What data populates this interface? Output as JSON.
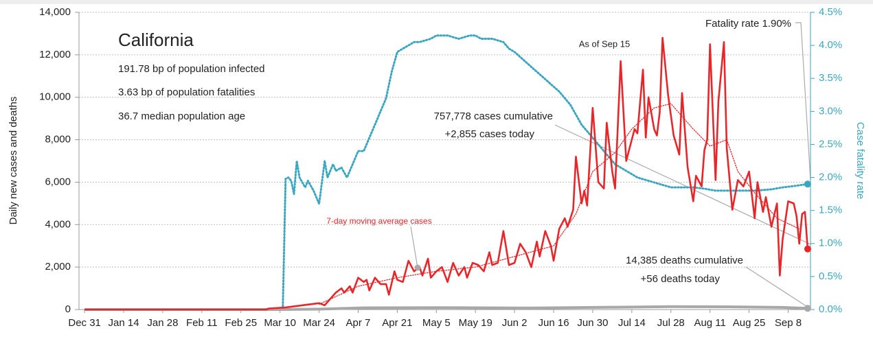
{
  "chart_data": {
    "type": "line",
    "title": "California",
    "subtitle_lines": [
      "191.78 bp of population infected",
      "3.63 bp of population fatalities",
      "36.7 median population age"
    ],
    "ylabel": "Daily new cases and deaths",
    "y2label": "Case fatality rate",
    "annotations": {
      "as_of": "As of Sep 15",
      "fatality": "Fatality rate 1.90%",
      "cases_cum": "757,778 cases cumulative",
      "cases_today": "+2,855 cases today",
      "deaths_cum": "14,385 deaths cumulative",
      "deaths_today": "+56 deaths today"
    },
    "xlim": [
      -2,
      260
    ],
    "xticks": [
      {
        "value": 0,
        "label": "Dec 31"
      },
      {
        "value": 14,
        "label": "Jan 14"
      },
      {
        "value": 28,
        "label": "Jan 28"
      },
      {
        "value": 42,
        "label": "Feb 11"
      },
      {
        "value": 56,
        "label": "Feb 25"
      },
      {
        "value": 70,
        "label": "Mar 10"
      },
      {
        "value": 84,
        "label": "Mar 24"
      },
      {
        "value": 98,
        "label": "Apr 7"
      },
      {
        "value": 112,
        "label": "Apr 21"
      },
      {
        "value": 126,
        "label": "May 5"
      },
      {
        "value": 140,
        "label": "May 19"
      },
      {
        "value": 154,
        "label": "Jun 2"
      },
      {
        "value": 168,
        "label": "Jun 16"
      },
      {
        "value": 182,
        "label": "Jun 30"
      },
      {
        "value": 196,
        "label": "Jul 14"
      },
      {
        "value": 210,
        "label": "Jul 28"
      },
      {
        "value": 224,
        "label": "Aug 11"
      },
      {
        "value": 238,
        "label": "Aug 25"
      },
      {
        "value": 252,
        "label": "Sep 8"
      }
    ],
    "ylim": [
      0,
      14000
    ],
    "yticks": [
      0,
      {
        "value": 2000,
        "label": "2,000"
      },
      {
        "value": 4000,
        "label": "4,000"
      },
      {
        "value": 6000,
        "label": "6,000"
      },
      {
        "value": 8000,
        "label": "8,000"
      },
      {
        "value": 10000,
        "label": "10,000"
      },
      {
        "value": 12000,
        "label": "12,000"
      },
      {
        "value": 14000,
        "label": "14,000"
      }
    ],
    "y2lim": [
      0,
      4.5
    ],
    "y2ticks": [
      {
        "value": 0,
        "label": "0.0%"
      },
      {
        "value": 0.5,
        "label": "0.5%"
      },
      {
        "value": 1,
        "label": "1.0%"
      },
      {
        "value": 1.5,
        "label": "1.5%"
      },
      {
        "value": 2,
        "label": "2.0%"
      },
      {
        "value": 2.5,
        "label": "2.5%"
      },
      {
        "value": 3,
        "label": "3.0%"
      },
      {
        "value": 3.5,
        "label": "3.5%"
      },
      {
        "value": 4,
        "label": "4.0%"
      },
      {
        "value": 4.5,
        "label": "4.5%"
      }
    ],
    "grid": true,
    "series": [
      {
        "color": "#3aa6bf",
        "style": "dotted",
        "axis": "y2",
        "x": [
          70,
          71,
          72,
          73,
          74,
          75,
          76,
          77,
          79,
          80,
          82,
          84,
          86,
          87,
          89,
          90,
          92,
          94,
          96,
          98,
          100,
          102,
          104,
          106,
          108,
          110,
          112,
          114,
          116,
          118,
          120,
          124,
          126,
          130,
          134,
          138,
          140,
          142,
          146,
          150,
          152,
          154,
          158,
          162,
          166,
          170,
          174,
          178,
          182,
          186,
          190,
          194,
          198,
          202,
          206,
          210,
          214,
          218,
          222,
          226,
          230,
          234,
          240,
          246,
          250,
          254,
          259
        ],
        "values": [
          0,
          0,
          1.98,
          2.0,
          1.95,
          1.75,
          2.25,
          2.0,
          1.85,
          1.95,
          1.8,
          1.6,
          2.25,
          2.0,
          2.2,
          2.1,
          2.15,
          2.0,
          2.2,
          2.4,
          2.4,
          2.6,
          2.8,
          3.0,
          3.2,
          3.6,
          3.9,
          3.95,
          4.0,
          4.05,
          4.05,
          4.1,
          4.15,
          4.15,
          4.1,
          4.15,
          4.15,
          4.1,
          4.1,
          4.05,
          3.95,
          3.9,
          3.75,
          3.6,
          3.45,
          3.3,
          3.1,
          2.8,
          2.6,
          2.4,
          2.2,
          2.1,
          2.0,
          1.95,
          1.9,
          1.85,
          1.85,
          1.85,
          1.83,
          1.8,
          1.8,
          1.8,
          1.8,
          1.82,
          1.85,
          1.87,
          1.9
        ]
      },
      {
        "color": "#a8a8a8",
        "style": "solid",
        "axis": "y",
        "x": [
          0,
          70,
          84,
          100,
          130,
          160,
          190,
          210,
          230,
          250,
          259
        ],
        "values": [
          0,
          0,
          20,
          80,
          90,
          70,
          110,
          140,
          130,
          100,
          56
        ]
      },
      {
        "name": "7-day moving average cases",
        "color": "#e8262a",
        "style": "dotted",
        "axis": "y",
        "x": [
          84,
          98,
          112,
          126,
          140,
          154,
          168,
          176,
          182,
          190,
          196,
          204,
          210,
          218,
          224,
          230,
          234,
          240,
          248,
          256
        ],
        "values": [
          250,
          1100,
          1500,
          1800,
          2000,
          2500,
          3000,
          4500,
          6500,
          7400,
          8500,
          9500,
          9700,
          8500,
          7700,
          8000,
          6500,
          5500,
          4300,
          3800
        ]
      },
      {
        "color": "#e8262a",
        "style": "solid",
        "axis": "y",
        "x": [
          0,
          65,
          66,
          72,
          84,
          86,
          88,
          90,
          92,
          93,
          95,
          96,
          98,
          100,
          101,
          102,
          104,
          106,
          108,
          109,
          111,
          112,
          114,
          116,
          118,
          120,
          121,
          123,
          124,
          126,
          128,
          130,
          132,
          134,
          136,
          137,
          139,
          141,
          143,
          145,
          146,
          148,
          150,
          152,
          154,
          156,
          158,
          160,
          162,
          163,
          165,
          167,
          168,
          170,
          172,
          173,
          175,
          176,
          178,
          179,
          180,
          182,
          184,
          186,
          187,
          189,
          190,
          192,
          194,
          196,
          197,
          198,
          200,
          201,
          202,
          204,
          205,
          206,
          207,
          209,
          211,
          213,
          214,
          216,
          218,
          219,
          221,
          222,
          223,
          224,
          226,
          227,
          229,
          230,
          232,
          234,
          236,
          238,
          240,
          241,
          243,
          244,
          246,
          248,
          249,
          250,
          252,
          254,
          255,
          256,
          257,
          258,
          259
        ],
        "values": [
          0,
          0,
          50,
          100,
          300,
          200,
          500,
          800,
          1000,
          800,
          1100,
          800,
          1500,
          1300,
          1400,
          900,
          1500,
          1200,
          1200,
          700,
          1800,
          1400,
          1300,
          2300,
          1800,
          2000,
          1600,
          2400,
          1500,
          1800,
          2000,
          1300,
          2200,
          1600,
          2000,
          1500,
          2200,
          2100,
          1800,
          2700,
          2100,
          2200,
          3700,
          2100,
          2200,
          3100,
          2700,
          2000,
          3200,
          2500,
          3700,
          3000,
          2300,
          3800,
          4300,
          3900,
          4700,
          7200,
          5000,
          5600,
          4900,
          9500,
          6000,
          5700,
          8800,
          6500,
          5700,
          11700,
          7000,
          8000,
          8500,
          8300,
          11300,
          8100,
          10000,
          8500,
          8200,
          9300,
          12800,
          10100,
          8200,
          7300,
          10200,
          6700,
          5100,
          6300,
          5800,
          7500,
          8000,
          12500,
          6100,
          9800,
          12600,
          7600,
          4700,
          6100,
          5800,
          6500,
          4300,
          6000,
          4600,
          5300,
          3900,
          5000,
          1600,
          3300,
          5100,
          5000,
          4400,
          3100,
          4500,
          4600,
          2855
        ]
      }
    ]
  }
}
